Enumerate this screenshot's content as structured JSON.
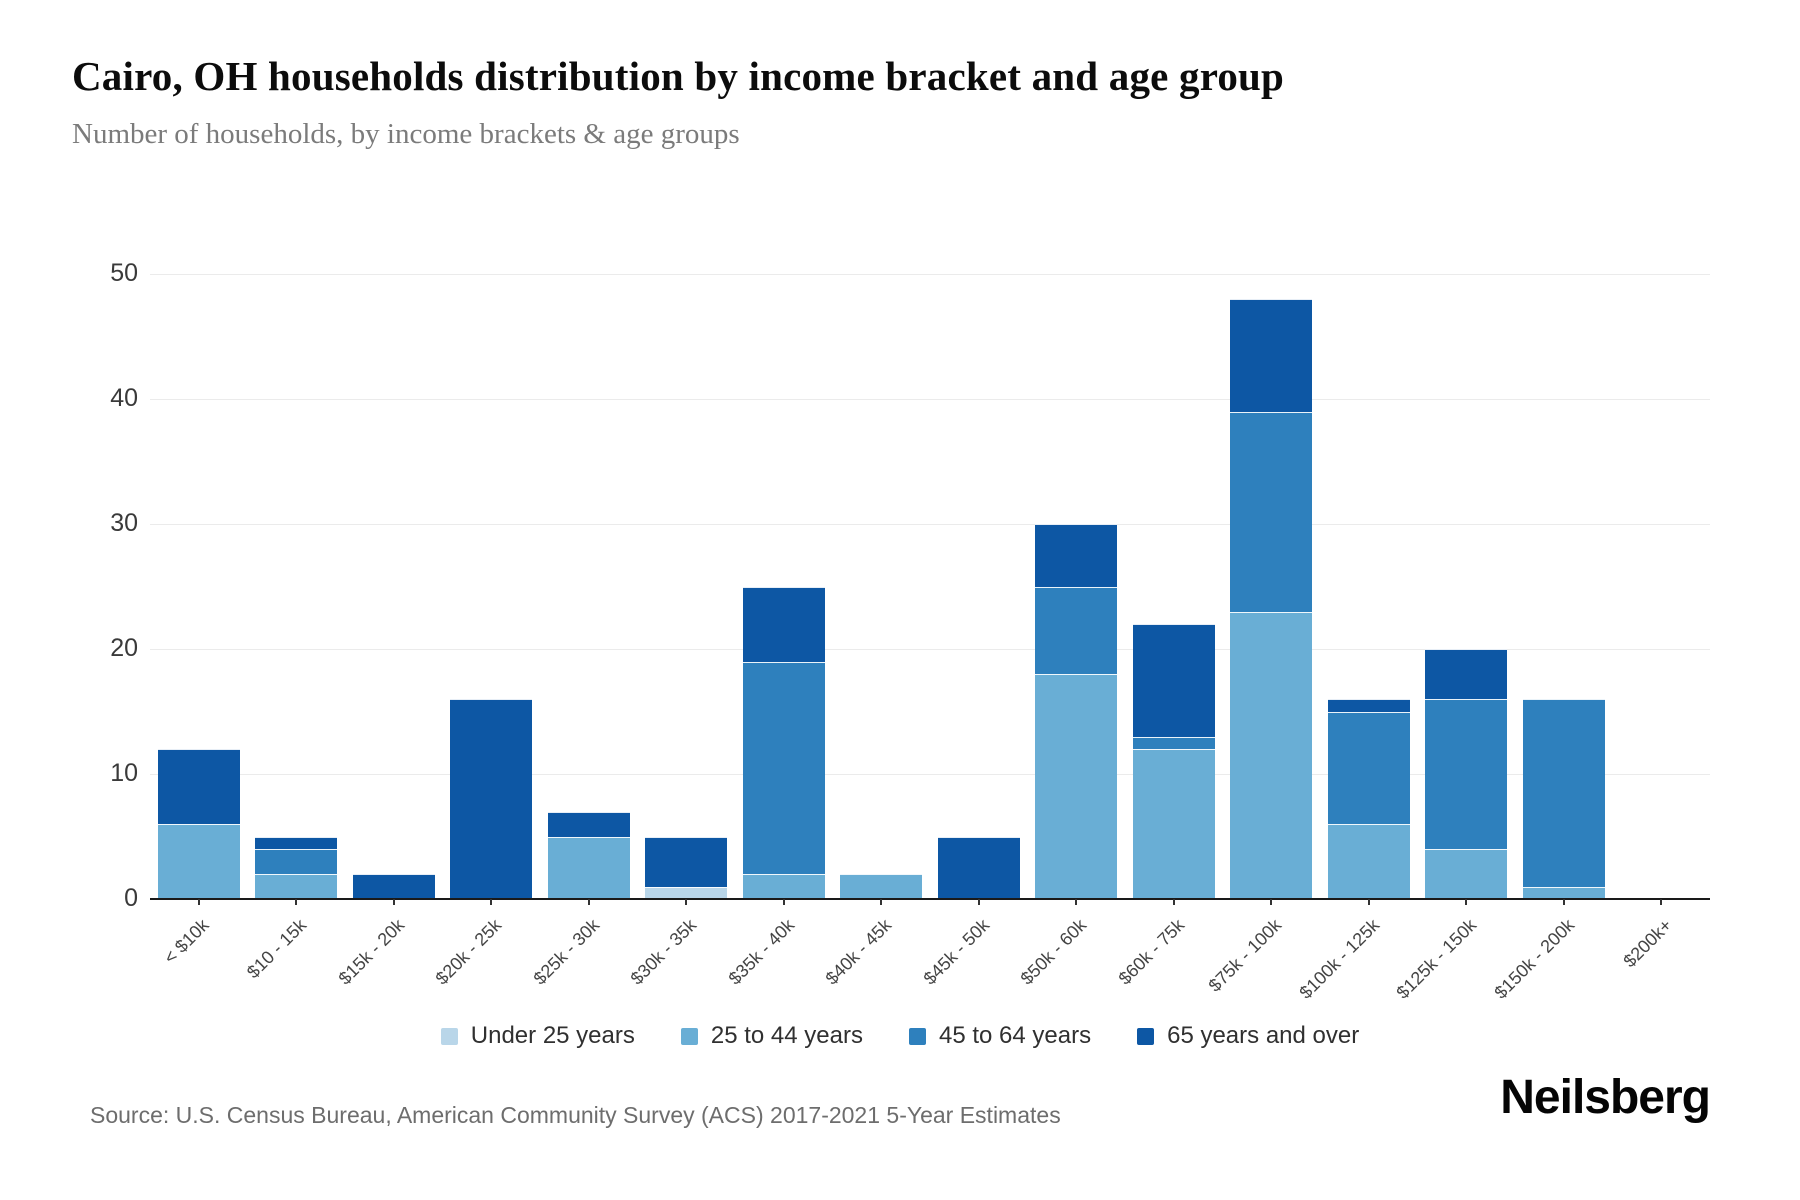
{
  "header": {
    "title": "Cairo, OH households distribution by income bracket and age group",
    "subtitle": "Number of households, by income brackets & age groups"
  },
  "chart_data": {
    "type": "bar",
    "stacked": true,
    "title": "Cairo, OH households distribution by income bracket and age group",
    "xlabel": "",
    "ylabel": "Number of households",
    "ylim": [
      0,
      50
    ],
    "yticks": [
      0,
      10,
      20,
      30,
      40,
      50
    ],
    "grid": true,
    "legend_position": "bottom",
    "categories": [
      "< $10k",
      "$10 - 15k",
      "$15k - 20k",
      "$20k - 25k",
      "$25k - 30k",
      "$30k - 35k",
      "$35k - 40k",
      "$40k - 45k",
      "$45k - 50k",
      "$50k - 60k",
      "$60k - 75k",
      "$75k - 100k",
      "$100k - 125k",
      "$125k - 150k",
      "$150k - 200k",
      "$200k+"
    ],
    "series": [
      {
        "name": "Under 25 years",
        "color": "#b9d6e9",
        "values": [
          0,
          0,
          0,
          0,
          0,
          1,
          0,
          0,
          0,
          0,
          0,
          0,
          0,
          0,
          0,
          0
        ]
      },
      {
        "name": "25 to 44 years",
        "color": "#69aed5",
        "values": [
          6,
          2,
          0,
          0,
          5,
          0,
          2,
          2,
          0,
          18,
          12,
          23,
          6,
          4,
          1,
          0
        ]
      },
      {
        "name": "45 to 64 years",
        "color": "#2e80bd",
        "values": [
          0,
          2,
          0,
          0,
          0,
          0,
          17,
          0,
          0,
          7,
          1,
          16,
          9,
          12,
          15,
          0
        ]
      },
      {
        "name": "65 years and over",
        "color": "#0d57a4",
        "values": [
          6,
          1,
          2,
          16,
          2,
          4,
          6,
          0,
          5,
          5,
          9,
          9,
          1,
          4,
          0,
          0
        ]
      }
    ]
  },
  "footer": {
    "source": "Source: U.S. Census Bureau, American Community Survey (ACS) 2017-2021 5-Year Estimates",
    "logo": "Neilsberg"
  }
}
